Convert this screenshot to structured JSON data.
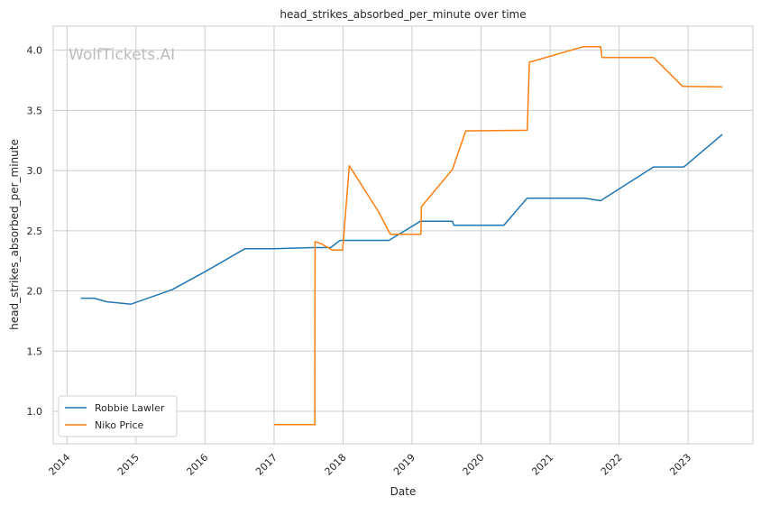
{
  "chart_data": {
    "type": "line",
    "title": "head_strikes_absorbed_per_minute over time",
    "xlabel": "Date",
    "ylabel": "head_strikes_absorbed_per_minute",
    "watermark": "WolfTickets.AI",
    "x_ticks": [
      "2014",
      "2015",
      "2016",
      "2017",
      "2018",
      "2019",
      "2020",
      "2021",
      "2022",
      "2023"
    ],
    "y_ticks": [
      "1.0",
      "1.5",
      "2.0",
      "2.5",
      "3.0",
      "3.5",
      "4.0"
    ],
    "xlim": [
      "2013-10-20",
      "2023-12-10"
    ],
    "ylim": [
      0.73,
      4.2
    ],
    "grid": true,
    "legend_position": "lower-left",
    "series": [
      {
        "name": "Robbie Lawler",
        "color": "#1f77b4",
        "points": [
          [
            "2014-03-15",
            1.94
          ],
          [
            "2014-05-24",
            1.94
          ],
          [
            "2014-08-01",
            1.91
          ],
          [
            "2014-12-06",
            1.89
          ],
          [
            "2015-07-11",
            2.01
          ],
          [
            "2016-01-02",
            2.16
          ],
          [
            "2016-07-30",
            2.35
          ],
          [
            "2017-01-01",
            2.35
          ],
          [
            "2017-07-29",
            2.36
          ],
          [
            "2017-10-28",
            2.36
          ],
          [
            "2017-12-16",
            2.42
          ],
          [
            "2018-09-01",
            2.42
          ],
          [
            "2019-02-15",
            2.58
          ],
          [
            "2019-08-03",
            2.58
          ],
          [
            "2019-08-10",
            2.545
          ],
          [
            "2020-05-01",
            2.545
          ],
          [
            "2020-09-01",
            2.77
          ],
          [
            "2021-07-03",
            2.77
          ],
          [
            "2021-09-25",
            2.75
          ],
          [
            "2022-07-02",
            3.03
          ],
          [
            "2022-12-10",
            3.03
          ],
          [
            "2023-07-01",
            3.3
          ]
        ]
      },
      {
        "name": "Niko Price",
        "color": "#ff7f0e",
        "points": [
          [
            "2016-12-30",
            0.89
          ],
          [
            "2017-08-05",
            0.89
          ],
          [
            "2017-08-06",
            2.41
          ],
          [
            "2017-09-10",
            2.39
          ],
          [
            "2017-11-04",
            2.34
          ],
          [
            "2017-12-30",
            2.34
          ],
          [
            "2018-02-03",
            3.04
          ],
          [
            "2018-07-07",
            2.66
          ],
          [
            "2018-09-08",
            2.47
          ],
          [
            "2019-02-17",
            2.47
          ],
          [
            "2019-02-20",
            2.7
          ],
          [
            "2019-08-03",
            3.01
          ],
          [
            "2019-10-12",
            3.33
          ],
          [
            "2020-09-02",
            3.335
          ],
          [
            "2020-09-13",
            3.9
          ],
          [
            "2021-06-26",
            4.03
          ],
          [
            "2021-09-25",
            4.03
          ],
          [
            "2021-10-02",
            3.94
          ],
          [
            "2022-07-02",
            3.94
          ],
          [
            "2022-12-03",
            3.7
          ],
          [
            "2023-07-01",
            3.695
          ]
        ]
      }
    ]
  }
}
